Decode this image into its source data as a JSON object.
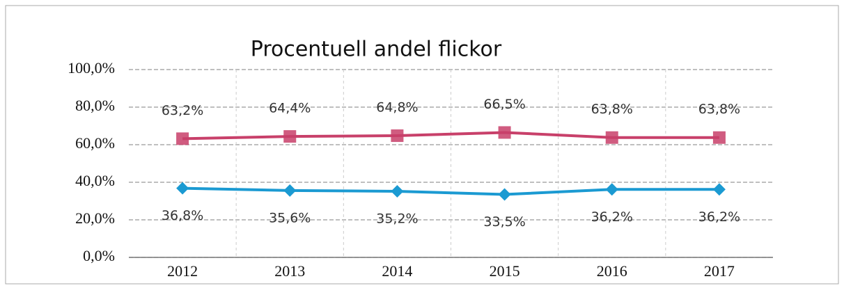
{
  "chart_data": {
    "type": "line",
    "title": "Procentuell andel flickor",
    "categories": [
      "2012",
      "2013",
      "2014",
      "2015",
      "2016",
      "2017"
    ],
    "series": [
      {
        "color": "#c8406a",
        "marker": "square",
        "values": [
          63.2,
          64.4,
          64.8,
          66.5,
          63.8,
          63.8
        ],
        "value_labels": [
          "63,2%",
          "64,4%",
          "64,8%",
          "66,5%",
          "63,8%",
          "63,8%"
        ]
      },
      {
        "color": "#1b9ad2",
        "marker": "diamond",
        "values": [
          36.8,
          35.6,
          35.2,
          33.5,
          36.2,
          36.2
        ],
        "value_labels": [
          "36,8%",
          "35,6%",
          "35,2%",
          "33,5%",
          "36,2%",
          "36,2%"
        ]
      }
    ],
    "ylim": [
      0,
      100
    ],
    "yticks": [
      {
        "value": 0,
        "label": "0,0%"
      },
      {
        "value": 20,
        "label": "20,0%"
      },
      {
        "value": 40,
        "label": "40,0%"
      },
      {
        "value": 60,
        "label": "60,0%"
      },
      {
        "value": 80,
        "label": "80,0%"
      },
      {
        "value": 100,
        "label": "100,0%"
      }
    ],
    "grid": true
  }
}
